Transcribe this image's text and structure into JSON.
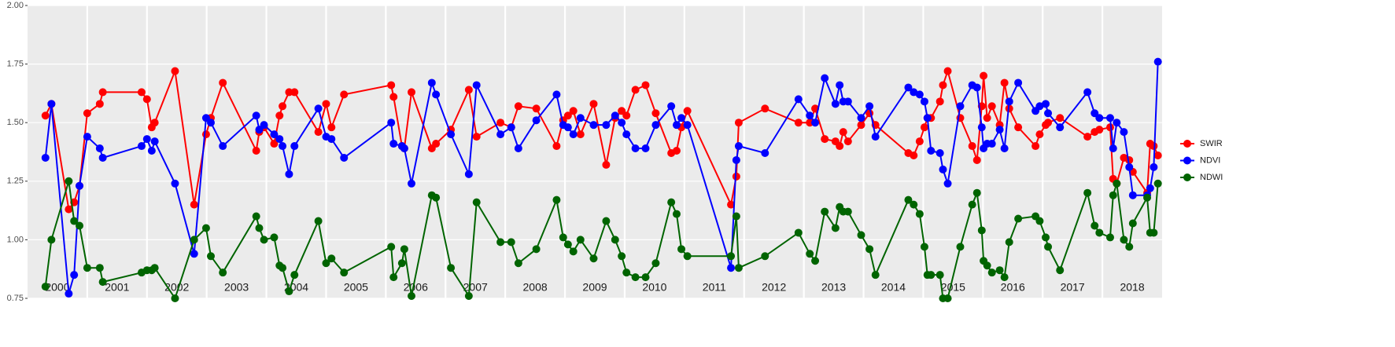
{
  "chart_data": {
    "type": "line",
    "x": [
      2000.3,
      2000.4,
      2000.69,
      2000.78,
      2000.87,
      2001.0,
      2001.21,
      2001.26,
      2001.91,
      2002.0,
      2002.08,
      2002.13,
      2002.47,
      2002.79,
      2002.99,
      2003.07,
      2003.27,
      2003.83,
      2003.88,
      2003.96,
      2004.13,
      2004.22,
      2004.27,
      2004.38,
      2004.47,
      2004.87,
      2005.0,
      2005.09,
      2005.3,
      2006.09,
      2006.13,
      2006.27,
      2006.31,
      2006.43,
      2006.77,
      2006.84,
      2007.09,
      2007.39,
      2007.52,
      2007.92,
      2008.1,
      2008.22,
      2008.52,
      2008.86,
      2008.97,
      2009.05,
      2009.14,
      2009.26,
      2009.48,
      2009.69,
      2009.84,
      2009.95,
      2010.03,
      2010.18,
      2010.35,
      2010.52,
      2010.78,
      2010.87,
      2010.95,
      2011.05,
      2011.78,
      2011.87,
      2011.91,
      2012.35,
      2012.91,
      2013.1,
      2013.19,
      2013.35,
      2013.53,
      2013.6,
      2013.66,
      2013.74,
      2013.96,
      2014.1,
      2014.2,
      2014.75,
      2014.84,
      2014.94,
      2015.02,
      2015.07,
      2015.13,
      2015.28,
      2015.33,
      2015.41,
      2015.62,
      2015.82,
      2015.9,
      2015.98,
      2016.01,
      2016.07,
      2016.15,
      2016.28,
      2016.36,
      2016.44,
      2016.59,
      2016.88,
      2016.95,
      2017.05,
      2017.09,
      2017.29,
      2017.75,
      2017.87,
      2017.95,
      2018.13,
      2018.18,
      2018.24,
      2018.36,
      2018.45,
      2018.51,
      2018.75,
      2018.8,
      2018.86,
      2018.93
    ],
    "series": [
      {
        "name": "SWIR",
        "color": "#ff0000",
        "values": [
          1.53,
          1.58,
          1.13,
          1.16,
          1.23,
          1.54,
          1.58,
          1.63,
          1.63,
          1.6,
          1.48,
          1.5,
          1.72,
          1.15,
          1.45,
          1.52,
          1.67,
          1.38,
          1.46,
          1.48,
          1.41,
          1.53,
          1.57,
          1.63,
          1.63,
          1.46,
          1.58,
          1.48,
          1.62,
          1.66,
          1.61,
          1.4,
          1.39,
          1.63,
          1.39,
          1.41,
          1.47,
          1.64,
          1.44,
          1.5,
          1.48,
          1.57,
          1.56,
          1.4,
          1.51,
          1.53,
          1.55,
          1.45,
          1.58,
          1.32,
          1.52,
          1.55,
          1.53,
          1.64,
          1.66,
          1.54,
          1.37,
          1.38,
          1.48,
          1.55,
          1.15,
          1.27,
          1.5,
          1.56,
          1.5,
          1.5,
          1.56,
          1.43,
          1.42,
          1.4,
          1.46,
          1.42,
          1.49,
          1.54,
          1.49,
          1.37,
          1.36,
          1.42,
          1.48,
          1.52,
          1.52,
          1.59,
          1.66,
          1.72,
          1.52,
          1.4,
          1.34,
          1.57,
          1.7,
          1.52,
          1.57,
          1.49,
          1.67,
          1.56,
          1.48,
          1.4,
          1.45,
          1.49,
          1.5,
          1.52,
          1.44,
          1.46,
          1.47,
          1.48,
          1.26,
          1.24,
          1.35,
          1.34,
          1.29,
          1.2,
          1.41,
          1.4,
          1.36
        ]
      },
      {
        "name": "NDVI",
        "color": "#0000ff",
        "values": [
          1.35,
          1.58,
          0.77,
          0.85,
          1.23,
          1.44,
          1.39,
          1.35,
          1.4,
          1.43,
          1.38,
          1.42,
          1.24,
          0.94,
          1.52,
          1.5,
          1.4,
          1.53,
          1.47,
          1.49,
          1.45,
          1.43,
          1.4,
          1.28,
          1.4,
          1.56,
          1.44,
          1.43,
          1.35,
          1.5,
          1.41,
          1.4,
          1.39,
          1.24,
          1.67,
          1.62,
          1.45,
          1.28,
          1.66,
          1.45,
          1.48,
          1.39,
          1.51,
          1.62,
          1.49,
          1.48,
          1.45,
          1.52,
          1.49,
          1.49,
          1.53,
          1.5,
          1.45,
          1.39,
          1.39,
          1.49,
          1.57,
          1.49,
          1.52,
          1.49,
          0.88,
          1.34,
          1.4,
          1.37,
          1.6,
          1.53,
          1.5,
          1.69,
          1.58,
          1.66,
          1.59,
          1.59,
          1.52,
          1.57,
          1.44,
          1.65,
          1.63,
          1.62,
          1.59,
          1.52,
          1.38,
          1.37,
          1.3,
          1.24,
          1.57,
          1.66,
          1.65,
          1.48,
          1.39,
          1.41,
          1.41,
          1.47,
          1.39,
          1.59,
          1.67,
          1.55,
          1.57,
          1.58,
          1.54,
          1.48,
          1.63,
          1.54,
          1.52,
          1.52,
          1.39,
          1.5,
          1.46,
          1.31,
          1.19,
          1.19,
          1.22,
          1.31,
          1.76
        ]
      },
      {
        "name": "NDWI",
        "color": "#006400",
        "values": [
          0.8,
          1.0,
          1.25,
          1.08,
          1.06,
          0.88,
          0.88,
          0.82,
          0.86,
          0.87,
          0.87,
          0.88,
          0.75,
          1.0,
          1.05,
          0.93,
          0.86,
          1.1,
          1.05,
          1.0,
          1.01,
          0.89,
          0.88,
          0.78,
          0.85,
          1.08,
          0.9,
          0.92,
          0.86,
          0.97,
          0.84,
          0.9,
          0.96,
          0.76,
          1.19,
          1.18,
          0.88,
          0.76,
          1.16,
          0.99,
          0.99,
          0.9,
          0.96,
          1.17,
          1.01,
          0.98,
          0.95,
          1.0,
          0.92,
          1.08,
          1.0,
          0.93,
          0.86,
          0.84,
          0.84,
          0.9,
          1.16,
          1.11,
          0.96,
          0.93,
          0.93,
          1.1,
          0.88,
          0.93,
          1.03,
          0.94,
          0.91,
          1.12,
          1.05,
          1.14,
          1.12,
          1.12,
          1.02,
          0.96,
          0.85,
          1.17,
          1.15,
          1.11,
          0.97,
          0.85,
          0.85,
          0.85,
          0.75,
          0.75,
          0.97,
          1.15,
          1.2,
          1.04,
          0.91,
          0.89,
          0.86,
          0.87,
          0.84,
          0.99,
          1.09,
          1.1,
          1.08,
          1.01,
          0.97,
          0.87,
          1.2,
          1.06,
          1.03,
          1.01,
          1.19,
          1.24,
          1.0,
          0.97,
          1.07,
          1.18,
          1.03,
          1.03,
          1.24
        ]
      }
    ],
    "xlim": [
      2000,
      2019
    ],
    "xticks": [
      {
        "value": 2000.5,
        "label": "2000"
      },
      {
        "value": 2001.5,
        "label": "2001"
      },
      {
        "value": 2002.5,
        "label": "2002"
      },
      {
        "value": 2003.5,
        "label": "2003"
      },
      {
        "value": 2004.5,
        "label": "2004"
      },
      {
        "value": 2005.5,
        "label": "2005"
      },
      {
        "value": 2006.5,
        "label": "2006"
      },
      {
        "value": 2007.5,
        "label": "2007"
      },
      {
        "value": 2008.5,
        "label": "2008"
      },
      {
        "value": 2009.5,
        "label": "2009"
      },
      {
        "value": 2010.5,
        "label": "2010"
      },
      {
        "value": 2011.5,
        "label": "2011"
      },
      {
        "value": 2012.5,
        "label": "2012"
      },
      {
        "value": 2013.5,
        "label": "2013"
      },
      {
        "value": 2014.5,
        "label": "2014"
      },
      {
        "value": 2015.5,
        "label": "2015"
      },
      {
        "value": 2016.5,
        "label": "2016"
      },
      {
        "value": 2017.5,
        "label": "2017"
      },
      {
        "value": 2018.5,
        "label": "2018"
      }
    ],
    "xgrid": [
      2001,
      2002,
      2003,
      2004,
      2005,
      2006,
      2007,
      2008,
      2009,
      2010,
      2011,
      2012,
      2013,
      2014,
      2015,
      2016,
      2017,
      2018
    ],
    "ylim": [
      0.75,
      2.0
    ],
    "yticks": [
      0.75,
      {
        "value": 1.0,
        "label": "1.00"
      },
      1.25,
      {
        "value": 1.5,
        "label": "1.50"
      },
      1.75,
      {
        "value": 2.0,
        "label": "2.00"
      }
    ],
    "grid": true,
    "legend": "right"
  }
}
